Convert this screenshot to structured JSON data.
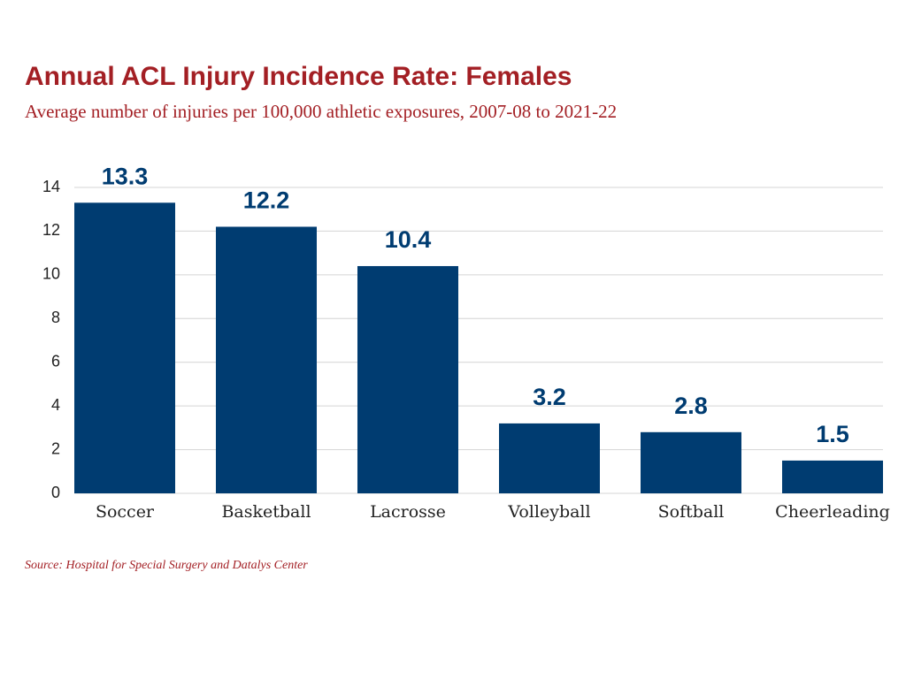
{
  "chart_data": {
    "type": "bar",
    "title": "Annual ACL Injury Incidence Rate: Females",
    "subtitle": "Average number of injuries per 100,000 athletic exposures, 2007-08 to 2021-22",
    "source": "Source: Hospital for Special Surgery and Datalys Center",
    "categories": [
      "Soccer",
      "Basketball",
      "Lacrosse",
      "Volleyball",
      "Softball",
      "Cheerleading"
    ],
    "values": [
      13.3,
      12.2,
      10.4,
      3.2,
      2.8,
      1.5
    ],
    "color": "#003c71",
    "ylim": [
      0,
      14
    ],
    "yticks": [
      0,
      2,
      4,
      6,
      8,
      10,
      12,
      14
    ],
    "grid": true
  }
}
